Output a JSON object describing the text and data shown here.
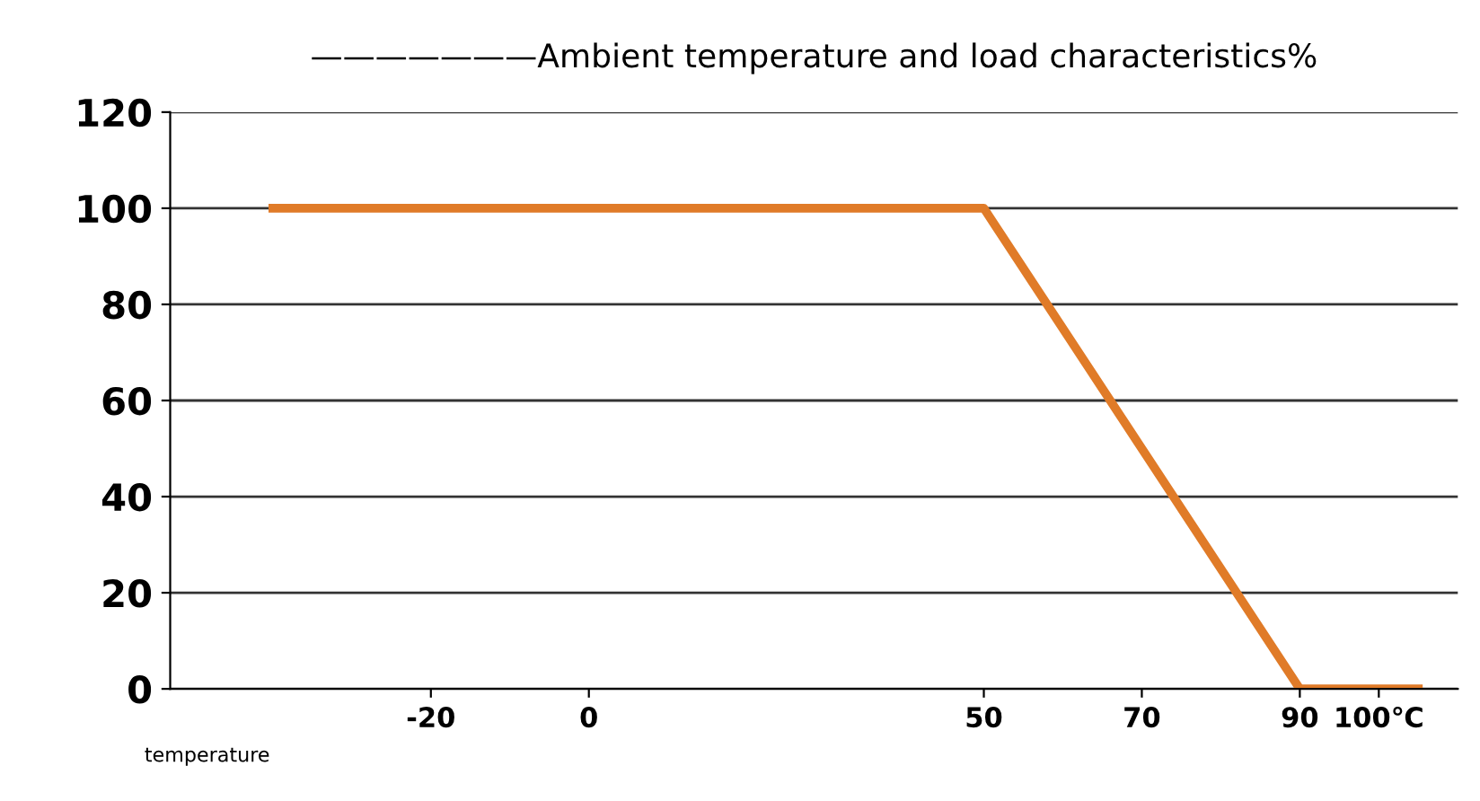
{
  "chart_data": {
    "type": "line",
    "title": "———————Ambient temperature and load characteristics%",
    "xlabel": "temperature",
    "x": [
      -40,
      50,
      90,
      105
    ],
    "series": [
      {
        "color": "#e07b28",
        "values": [
          100,
          100,
          0,
          0
        ]
      }
    ],
    "xlim": [
      -53,
      110
    ],
    "xticks": [
      -20,
      0,
      50,
      70,
      90,
      {
        "value": 100,
        "label": "100℃"
      }
    ],
    "ylim": [
      0,
      120
    ],
    "yticks": [
      0,
      20,
      40,
      60,
      80,
      100,
      120
    ],
    "grid": "y",
    "legend": false,
    "marker": "none",
    "line_style": "solid"
  }
}
